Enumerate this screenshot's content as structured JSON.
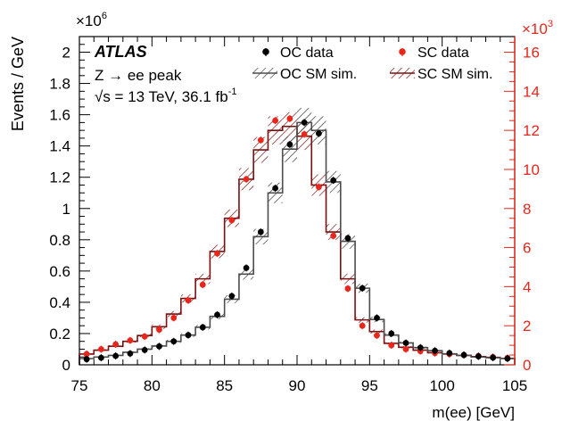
{
  "chart_data": {
    "type": "line",
    "x_edges": [
      75,
      76,
      77,
      78,
      79,
      80,
      81,
      82,
      83,
      84,
      85,
      86,
      87,
      88,
      89,
      90,
      91,
      92,
      93,
      94,
      95,
      96,
      97,
      98,
      99,
      100,
      101,
      102,
      103,
      104,
      105
    ],
    "x_centers": [
      75.5,
      76.5,
      77.5,
      78.5,
      79.5,
      80.5,
      81.5,
      82.5,
      83.5,
      84.5,
      85.5,
      86.5,
      87.5,
      88.5,
      89.5,
      90.5,
      91.5,
      92.5,
      93.5,
      94.5,
      95.5,
      96.5,
      97.5,
      98.5,
      99.5,
      100.5,
      101.5,
      102.5,
      103.5,
      104.5
    ],
    "xlabel": "m(ee) [GeV]",
    "x_ticks": [
      75,
      80,
      85,
      90,
      95,
      100,
      105
    ],
    "xlim": [
      75,
      105
    ],
    "ylabel": "Events / GeV",
    "y_multiplier": "×10",
    "y_multiplier_exp": "6",
    "ylim": [
      0,
      2.1
    ],
    "y_ticks": [
      0,
      0.2,
      0.4,
      0.6,
      0.8,
      1,
      1.2,
      1.4,
      1.6,
      1.8,
      2
    ],
    "y_tick_labels": [
      "0",
      "0.2",
      "0.4",
      "0.6",
      "0.8",
      "1",
      "1.2",
      "1.4",
      "1.6",
      "1.8",
      "2"
    ],
    "y2_multiplier": "×10",
    "y2_multiplier_exp": "3",
    "y2lim": [
      0,
      16.8
    ],
    "y2_ticks": [
      0,
      2,
      4,
      6,
      8,
      10,
      12,
      14,
      16
    ],
    "y2_color": "#e8261c",
    "annotation": {
      "brand": "ATLAS",
      "process": "Z → ee peak",
      "energy_prefix": "√s = 13 TeV, 36.1 fb",
      "energy_exp": "-1"
    },
    "legend": {
      "placement": "top-right",
      "oc_data": "OC data",
      "sc_data": "SC data",
      "oc_sim": "OC SM sim.",
      "sc_sim": "SC SM sim."
    },
    "series": [
      {
        "name": "OC SM sim.",
        "axis": "left",
        "kind": "hist",
        "color": "#4d4d4d",
        "values": [
          0.04,
          0.05,
          0.06,
          0.08,
          0.1,
          0.12,
          0.15,
          0.19,
          0.24,
          0.31,
          0.42,
          0.58,
          0.82,
          1.1,
          1.38,
          1.55,
          1.5,
          1.17,
          0.79,
          0.49,
          0.29,
          0.19,
          0.14,
          0.11,
          0.09,
          0.07,
          0.06,
          0.05,
          0.045,
          0.04
        ]
      },
      {
        "name": "SC SM sim.",
        "axis": "right",
        "kind": "hist",
        "color": "#7a1010",
        "values": [
          0.55,
          0.75,
          0.95,
          1.2,
          1.5,
          1.95,
          2.6,
          3.4,
          4.4,
          5.8,
          7.5,
          9.5,
          11.0,
          12.0,
          12.2,
          11.7,
          9.2,
          6.8,
          4.4,
          2.3,
          1.7,
          1.1,
          0.9,
          0.75,
          0.62,
          0.55,
          0.48,
          0.42,
          0.38,
          0.33
        ]
      },
      {
        "name": "OC data",
        "axis": "left",
        "kind": "points",
        "color": "#000000",
        "values": [
          0.036,
          0.045,
          0.057,
          0.072,
          0.095,
          0.118,
          0.15,
          0.19,
          0.24,
          0.32,
          0.44,
          0.62,
          0.85,
          1.13,
          1.41,
          1.55,
          1.48,
          1.18,
          0.81,
          0.49,
          0.3,
          0.2,
          0.14,
          0.11,
          0.09,
          0.075,
          0.063,
          0.054,
          0.046,
          0.04
        ]
      },
      {
        "name": "SC data",
        "axis": "right",
        "kind": "points",
        "color": "#e8261c",
        "values": [
          0.55,
          0.8,
          1.05,
          1.25,
          1.45,
          1.8,
          2.4,
          3.3,
          4.1,
          5.7,
          7.4,
          9.5,
          11.5,
          12.5,
          12.6,
          11.8,
          9.1,
          6.6,
          3.9,
          2.0,
          1.5,
          1.0,
          0.8,
          0.7,
          0.6,
          0.55,
          0.5,
          0.45,
          0.4,
          0.35
        ]
      }
    ]
  }
}
